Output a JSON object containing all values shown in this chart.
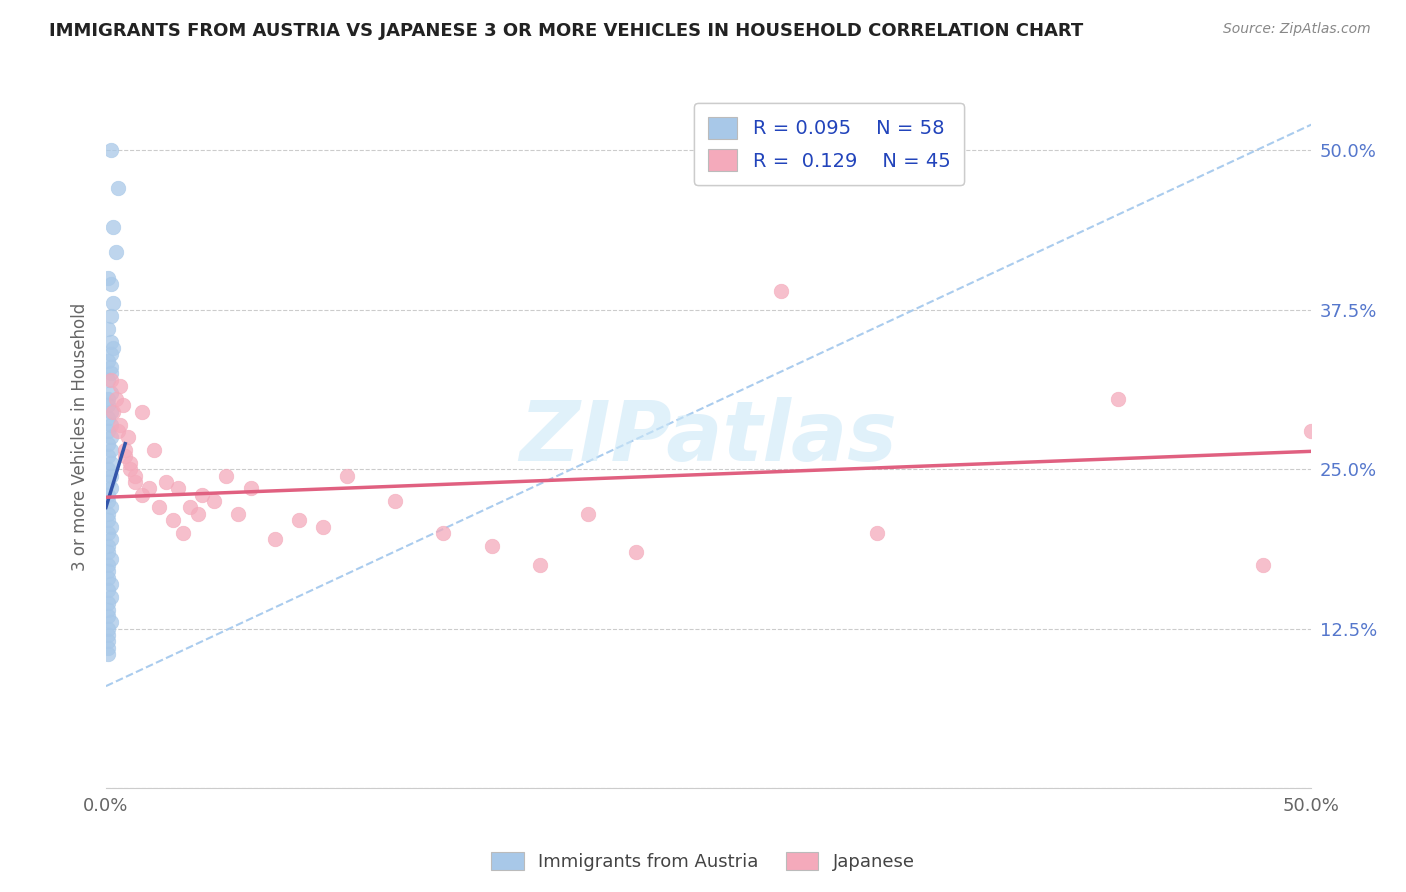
{
  "title": "IMMIGRANTS FROM AUSTRIA VS JAPANESE 3 OR MORE VEHICLES IN HOUSEHOLD CORRELATION CHART",
  "source": "Source: ZipAtlas.com",
  "ylabel": "3 or more Vehicles in Household",
  "xlim": [
    0.0,
    0.5
  ],
  "ylim": [
    0.0,
    0.55
  ],
  "xtick_positions": [
    0.0,
    0.1,
    0.2,
    0.3,
    0.4,
    0.5
  ],
  "xticklabels": [
    "0.0%",
    "",
    "",
    "",
    "",
    "50.0%"
  ],
  "ytick_positions": [
    0.0,
    0.125,
    0.25,
    0.375,
    0.5
  ],
  "ytick_labels_right": [
    "",
    "12.5%",
    "25.0%",
    "37.5%",
    "50.0%"
  ],
  "legend_R1": "0.095",
  "legend_N1": "58",
  "legend_R2": "0.129",
  "legend_N2": "45",
  "blue_color": "#A8C8E8",
  "pink_color": "#F4AABB",
  "blue_line_color": "#3355AA",
  "pink_line_color": "#E06080",
  "dashed_line_color": "#AACCEE",
  "watermark": "ZIPatlas",
  "austria_x": [
    0.002,
    0.005,
    0.003,
    0.004,
    0.001,
    0.002,
    0.003,
    0.002,
    0.001,
    0.002,
    0.003,
    0.002,
    0.001,
    0.002,
    0.002,
    0.001,
    0.002,
    0.001,
    0.001,
    0.002,
    0.001,
    0.002,
    0.001,
    0.002,
    0.001,
    0.002,
    0.001,
    0.002,
    0.001,
    0.002,
    0.001,
    0.002,
    0.001,
    0.001,
    0.002,
    0.001,
    0.001,
    0.002,
    0.001,
    0.002,
    0.001,
    0.001,
    0.002,
    0.001,
    0.001,
    0.001,
    0.002,
    0.001,
    0.002,
    0.001,
    0.001,
    0.001,
    0.002,
    0.001,
    0.001,
    0.001,
    0.001,
    0.001
  ],
  "austria_y": [
    0.5,
    0.47,
    0.44,
    0.42,
    0.4,
    0.395,
    0.38,
    0.37,
    0.36,
    0.35,
    0.345,
    0.34,
    0.335,
    0.33,
    0.325,
    0.32,
    0.31,
    0.305,
    0.3,
    0.295,
    0.29,
    0.285,
    0.28,
    0.275,
    0.27,
    0.265,
    0.26,
    0.255,
    0.25,
    0.245,
    0.24,
    0.235,
    0.23,
    0.225,
    0.22,
    0.215,
    0.21,
    0.205,
    0.2,
    0.195,
    0.19,
    0.185,
    0.18,
    0.175,
    0.17,
    0.165,
    0.16,
    0.155,
    0.15,
    0.145,
    0.14,
    0.135,
    0.13,
    0.125,
    0.12,
    0.115,
    0.11,
    0.105
  ],
  "japanese_x": [
    0.002,
    0.004,
    0.003,
    0.006,
    0.005,
    0.007,
    0.006,
    0.008,
    0.009,
    0.01,
    0.008,
    0.012,
    0.01,
    0.015,
    0.012,
    0.018,
    0.02,
    0.015,
    0.025,
    0.022,
    0.03,
    0.028,
    0.035,
    0.032,
    0.04,
    0.038,
    0.045,
    0.05,
    0.055,
    0.06,
    0.07,
    0.08,
    0.09,
    0.1,
    0.12,
    0.14,
    0.16,
    0.18,
    0.2,
    0.22,
    0.28,
    0.32,
    0.42,
    0.48,
    0.5
  ],
  "japanese_y": [
    0.32,
    0.305,
    0.295,
    0.315,
    0.28,
    0.3,
    0.285,
    0.26,
    0.275,
    0.25,
    0.265,
    0.24,
    0.255,
    0.295,
    0.245,
    0.235,
    0.265,
    0.23,
    0.24,
    0.22,
    0.235,
    0.21,
    0.22,
    0.2,
    0.23,
    0.215,
    0.225,
    0.245,
    0.215,
    0.235,
    0.195,
    0.21,
    0.205,
    0.245,
    0.225,
    0.2,
    0.19,
    0.175,
    0.215,
    0.185,
    0.39,
    0.2,
    0.305,
    0.175,
    0.28
  ],
  "blue_line_x": [
    0.0,
    0.008
  ],
  "blue_line_y": [
    0.22,
    0.27
  ],
  "pink_line_x": [
    0.0,
    0.5
  ],
  "pink_line_y": [
    0.228,
    0.264
  ],
  "dash_line_x": [
    0.0,
    0.5
  ],
  "dash_line_y": [
    0.08,
    0.52
  ]
}
